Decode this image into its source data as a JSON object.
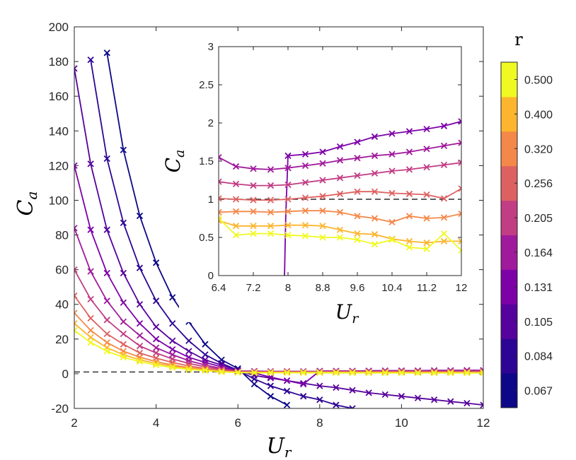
{
  "chart_data": {
    "type": "line",
    "main": {
      "xlabel": "U",
      "xlabel_sub": "r",
      "ylabel": "C",
      "ylabel_sub": "a",
      "xlim": [
        2,
        12
      ],
      "ylim": [
        -20,
        200
      ],
      "xticks": [
        2,
        4,
        6,
        8,
        10,
        12
      ],
      "yticks": [
        -20,
        0,
        20,
        40,
        60,
        80,
        100,
        120,
        140,
        160,
        180,
        200
      ],
      "reference_line_y": 1,
      "series": [
        {
          "name": "0.067",
          "color": "#0d0887",
          "x": [
            2.8,
            3.2,
            3.6,
            4.0,
            4.4,
            4.8,
            5.2,
            5.6,
            6.0,
            6.4,
            6.8,
            7.2
          ],
          "y": [
            185,
            129,
            91,
            64,
            44,
            30,
            17,
            8,
            3,
            -6,
            -13,
            -18
          ]
        },
        {
          "name": "0.084",
          "color": "#2d0594",
          "x": [
            2.4,
            2.8,
            3.2,
            3.6,
            4.0,
            4.4,
            4.8,
            5.2,
            5.6,
            6.0,
            6.4,
            6.8,
            7.2,
            7.6,
            8.0,
            8.4,
            8.8
          ],
          "y": [
            181,
            124,
            87,
            61,
            42,
            29,
            19,
            11,
            6,
            2,
            -3,
            -7,
            -10,
            -13,
            -15,
            -18,
            -20
          ]
        },
        {
          "name": "0.105",
          "color": "#56029c",
          "x": [
            2.0,
            2.4,
            2.8,
            3.2,
            3.6,
            4.0,
            4.4,
            4.8,
            5.2,
            5.6,
            6.0,
            6.4,
            6.8,
            7.2,
            7.6,
            8.0,
            8.4,
            8.8,
            9.2,
            9.6,
            10.0,
            10.4,
            10.8,
            11.2,
            11.6,
            12.0
          ],
          "y": [
            176,
            121,
            83,
            58,
            40,
            27,
            19,
            13,
            8,
            5,
            2,
            -1,
            -2.5,
            -4,
            -5.5,
            -7,
            -8,
            -9.5,
            -11,
            -12,
            -13,
            -14,
            -15,
            -16,
            -17,
            -18
          ]
        },
        {
          "name": "0.131",
          "color": "#7c02a8",
          "x": [
            2.0,
            2.4,
            2.8,
            3.2,
            3.6,
            4.0,
            4.4,
            4.8,
            5.2,
            5.6,
            6.0,
            6.4,
            6.8,
            7.2,
            7.6,
            8.0,
            8.4,
            8.8,
            9.2,
            9.6,
            10.0,
            10.4,
            10.8,
            11.2,
            11.6,
            12.0
          ],
          "y": [
            120,
            83,
            58,
            41,
            29,
            20,
            14,
            9.5,
            6.5,
            4,
            1.5,
            0.5,
            -2,
            -4,
            -6,
            1.6,
            1.6,
            1.6,
            1.7,
            1.8,
            1.8,
            1.8,
            1.9,
            1.9,
            2.0,
            2.0
          ]
        },
        {
          "name": "0.164",
          "color": "#a01a9c",
          "x": [
            2.0,
            2.4,
            2.8,
            3.2,
            3.6,
            4.0,
            4.4,
            4.8,
            5.2,
            5.6,
            6.0,
            6.4,
            6.8,
            7.2,
            7.6,
            8.0,
            8.4,
            8.8,
            9.2,
            9.6,
            10.0,
            10.4,
            10.8,
            11.2,
            11.6,
            12.0
          ],
          "y": [
            84,
            59,
            42,
            30,
            22,
            15,
            11,
            7.5,
            5,
            3,
            1.6,
            1.5,
            1.4,
            1.4,
            1.4,
            1.4,
            1.5,
            1.5,
            1.5,
            1.6,
            1.6,
            1.6,
            1.7,
            1.7,
            1.7,
            1.8
          ]
        },
        {
          "name": "0.205",
          "color": "#c13d84",
          "x": [
            2.0,
            2.4,
            2.8,
            3.2,
            3.6,
            4.0,
            4.4,
            4.8,
            5.2,
            5.6,
            6.0,
            6.4,
            6.8,
            7.2,
            7.6,
            8.0,
            8.4,
            8.8,
            9.2,
            9.6,
            10.0,
            10.4,
            10.8,
            11.2,
            11.6,
            12.0
          ],
          "y": [
            60,
            43,
            31,
            23,
            16,
            12,
            8.5,
            6,
            4,
            2.5,
            1.3,
            1.2,
            1.2,
            1.2,
            1.2,
            1.2,
            1.3,
            1.3,
            1.3,
            1.4,
            1.4,
            1.4,
            1.4,
            1.4,
            1.5,
            1.5
          ]
        },
        {
          "name": "0.256",
          "color": "#de6161",
          "x": [
            2.0,
            2.4,
            2.8,
            3.2,
            3.6,
            4.0,
            4.4,
            4.8,
            5.2,
            5.6,
            6.0,
            6.4,
            6.8,
            7.2,
            7.6,
            8.0,
            8.4,
            8.8,
            9.2,
            9.6,
            10.0,
            10.4,
            10.8,
            11.2,
            11.6,
            12.0
          ],
          "y": [
            45,
            32,
            23,
            17,
            12,
            9,
            6.5,
            4.5,
            3,
            2,
            1,
            1,
            1,
            1,
            1,
            1,
            1,
            1.1,
            1.1,
            1.1,
            1.1,
            1.1,
            1.1,
            1.1,
            1,
            1.1
          ]
        },
        {
          "name": "0.320",
          "color": "#f48849",
          "x": [
            2.0,
            2.4,
            2.8,
            3.2,
            3.6,
            4.0,
            4.4,
            4.8,
            5.2,
            5.6,
            6.0,
            6.4,
            6.8,
            7.2,
            7.6,
            8.0,
            8.4,
            8.8,
            9.2,
            9.6,
            10.0,
            10.4,
            10.8,
            11.2,
            11.6,
            12.0
          ],
          "y": [
            35,
            25,
            18,
            13,
            9.5,
            7,
            5,
            3.5,
            2.5,
            1.5,
            0.9,
            0.85,
            0.85,
            0.85,
            0.85,
            0.85,
            0.85,
            0.85,
            0.8,
            0.8,
            0.8,
            0.75,
            0.8,
            0.8,
            0.75,
            0.8
          ]
        },
        {
          "name": "0.400",
          "color": "#fdb52e",
          "x": [
            2.0,
            2.4,
            2.8,
            3.2,
            3.6,
            4.0,
            4.4,
            4.8,
            5.2,
            5.6,
            6.0,
            6.4,
            6.8,
            7.2,
            7.6,
            8.0,
            8.4,
            8.8,
            9.2,
            9.6,
            10.0,
            10.4,
            10.8,
            11.2,
            11.6,
            12.0
          ],
          "y": [
            29,
            21,
            15,
            11,
            8,
            6,
            4.3,
            3,
            2.2,
            1.3,
            0.75,
            0.7,
            0.7,
            0.7,
            0.7,
            0.7,
            0.7,
            0.65,
            0.6,
            0.6,
            0.6,
            0.55,
            0.55,
            0.5,
            0.5,
            0.5
          ]
        },
        {
          "name": "0.500",
          "color": "#f0f921",
          "x": [
            2.0,
            2.4,
            2.8,
            3.2,
            3.6,
            4.0,
            4.4,
            4.8,
            5.2,
            5.6,
            6.0,
            6.4,
            6.8,
            7.2,
            7.6,
            8.0,
            8.4,
            8.8,
            9.2,
            9.6,
            10.0,
            10.4,
            10.8,
            11.2,
            11.6,
            12.0
          ],
          "y": [
            25,
            18,
            13,
            9.5,
            7,
            5,
            3.6,
            2.5,
            1.8,
            1,
            0.7,
            0.55,
            0.55,
            0.55,
            0.55,
            0.5,
            0.5,
            0.5,
            0.5,
            0.45,
            0.5,
            0.45,
            0.4,
            0.45,
            0.5,
            0.35
          ]
        }
      ]
    },
    "inset": {
      "xlabel": "U",
      "xlabel_sub": "r",
      "ylabel": "C",
      "ylabel_sub": "a",
      "xlim": [
        6.4,
        12
      ],
      "ylim": [
        0,
        3
      ],
      "xticks": [
        6.4,
        7.2,
        8,
        8.8,
        9.6,
        10.4,
        11.2,
        12
      ],
      "xtick_labels": [
        "6.4",
        "7.2",
        "8",
        "8.8",
        "9.6",
        "10.4",
        "11.2",
        "12"
      ],
      "yticks": [
        0,
        0.5,
        1,
        1.5,
        2,
        2.5,
        3
      ],
      "ytick_labels": [
        "0",
        "0.5",
        "1",
        "1.5",
        "2",
        "2.5",
        "3"
      ],
      "reference_line_y": 1,
      "series": [
        {
          "name": "0.131",
          "color": "#7c02a8",
          "x": [
            7.9,
            7.95,
            8.0,
            8.4,
            8.8,
            9.2,
            9.6,
            10.0,
            10.4,
            10.8,
            11.2,
            11.6,
            12.0
          ],
          "y": [
            -0.5,
            0.8,
            1.57,
            1.59,
            1.62,
            1.69,
            1.75,
            1.82,
            1.86,
            1.89,
            1.92,
            1.96,
            2.02
          ],
          "markers_from": 2
        },
        {
          "name": "0.164",
          "color": "#a01a9c",
          "x": [
            6.4,
            6.8,
            7.2,
            7.6,
            8.0,
            8.4,
            8.8,
            9.2,
            9.6,
            10.0,
            10.4,
            10.8,
            11.2,
            11.6,
            12.0
          ],
          "y": [
            1.55,
            1.43,
            1.4,
            1.39,
            1.41,
            1.44,
            1.47,
            1.51,
            1.54,
            1.57,
            1.59,
            1.62,
            1.66,
            1.7,
            1.74
          ]
        },
        {
          "name": "0.205",
          "color": "#c13d84",
          "x": [
            6.4,
            6.8,
            7.2,
            7.6,
            8.0,
            8.4,
            8.8,
            9.2,
            9.6,
            10.0,
            10.4,
            10.8,
            11.2,
            11.6,
            12.0
          ],
          "y": [
            1.23,
            1.2,
            1.18,
            1.18,
            1.19,
            1.22,
            1.25,
            1.28,
            1.31,
            1.34,
            1.37,
            1.39,
            1.42,
            1.45,
            1.48
          ]
        },
        {
          "name": "0.256",
          "color": "#de6161",
          "x": [
            6.4,
            6.8,
            7.2,
            7.6,
            8.0,
            8.4,
            8.8,
            9.2,
            9.6,
            10.0,
            10.4,
            10.8,
            11.2,
            11.6,
            12.0
          ],
          "y": [
            1.01,
            1.0,
            0.99,
            0.99,
            1.0,
            1.02,
            1.04,
            1.07,
            1.1,
            1.1,
            1.08,
            1.07,
            1.06,
            1.01,
            1.14
          ]
        },
        {
          "name": "0.320",
          "color": "#f48849",
          "x": [
            6.4,
            6.8,
            7.2,
            7.6,
            8.0,
            8.4,
            8.8,
            9.2,
            9.6,
            10.0,
            10.4,
            10.8,
            11.2,
            11.6,
            12.0
          ],
          "y": [
            0.83,
            0.84,
            0.84,
            0.83,
            0.84,
            0.85,
            0.85,
            0.83,
            0.78,
            0.75,
            0.7,
            0.78,
            0.75,
            0.76,
            0.81
          ]
        },
        {
          "name": "0.400",
          "color": "#fdb52e",
          "x": [
            6.4,
            6.8,
            7.2,
            7.6,
            8.0,
            8.4,
            8.8,
            9.2,
            9.6,
            10.0,
            10.4,
            10.8,
            11.2,
            11.6,
            12.0
          ],
          "y": [
            0.72,
            0.65,
            0.65,
            0.65,
            0.66,
            0.66,
            0.65,
            0.6,
            0.55,
            0.54,
            0.48,
            0.45,
            0.43,
            0.45,
            0.45
          ]
        },
        {
          "name": "0.500",
          "color": "#f0f921",
          "x": [
            6.4,
            6.8,
            7.2,
            7.6,
            8.0,
            8.4,
            8.8,
            9.2,
            9.6,
            10.0,
            10.4,
            10.8,
            11.2,
            11.6,
            12.0
          ],
          "y": [
            0.75,
            0.53,
            0.55,
            0.55,
            0.53,
            0.52,
            0.5,
            0.5,
            0.47,
            0.41,
            0.47,
            0.37,
            0.35,
            0.55,
            0.33
          ]
        }
      ]
    },
    "colorbar": {
      "title": "r",
      "labels": [
        "0.067",
        "0.084",
        "0.105",
        "0.131",
        "0.164",
        "0.205",
        "0.256",
        "0.320",
        "0.400",
        "0.500"
      ],
      "colors": [
        "#0d0887",
        "#2d0594",
        "#56029c",
        "#7c02a8",
        "#a01a9c",
        "#c13d84",
        "#de6161",
        "#f48849",
        "#fdb52e",
        "#f0f921"
      ]
    }
  }
}
